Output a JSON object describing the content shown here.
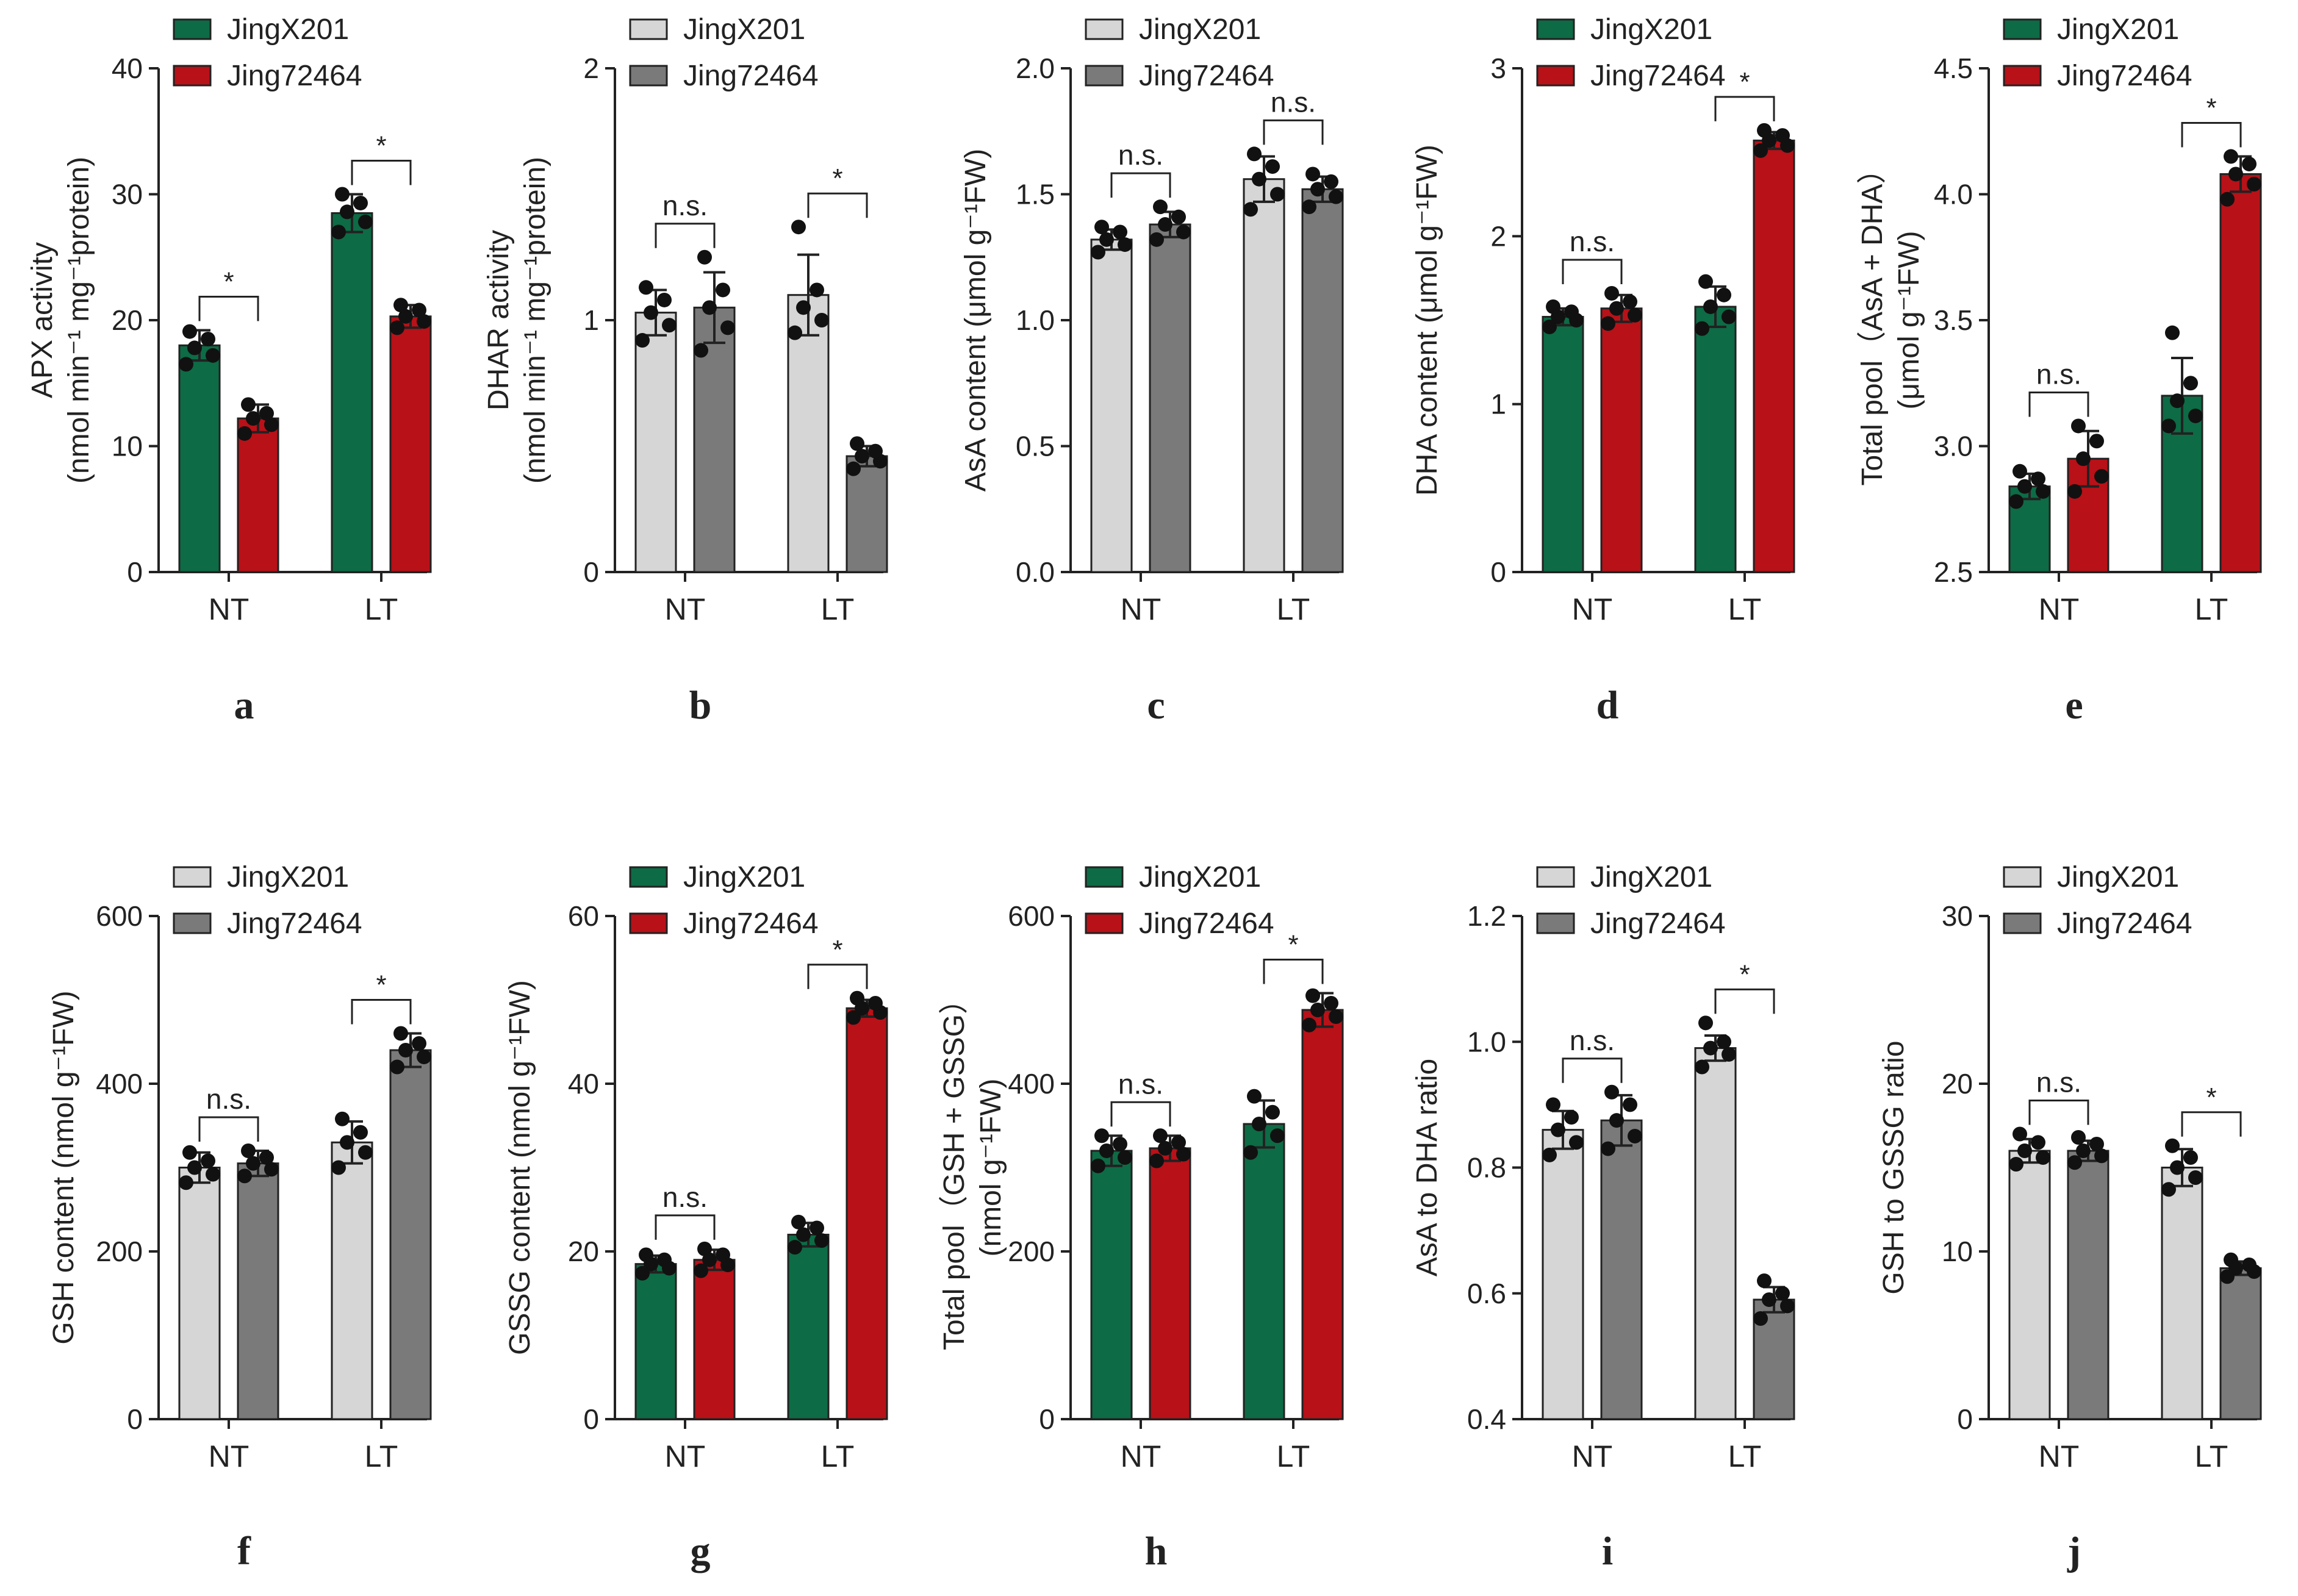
{
  "colors": {
    "green": "#0d6b45",
    "red": "#b81118",
    "light_gray": "#d6d6d6",
    "dark_gray": "#7a7a7a",
    "axis": "#222222"
  },
  "chart_data": [
    {
      "panel": "a",
      "type": "bar",
      "ylabel": "APX activity",
      "ylabel2": "(nmol min⁻¹ mg⁻¹protein)",
      "ylim": [
        0,
        40
      ],
      "yticks": [
        "0",
        "10",
        "20",
        "30",
        "40"
      ],
      "categories": [
        "NT",
        "LT"
      ],
      "series": [
        {
          "name": "JingX201",
          "color": "#0d6b45",
          "values": [
            18.0,
            28.5
          ],
          "errors": [
            1.2,
            1.5
          ],
          "points": [
            [
              16.5,
              17.2,
              17.8,
              18.5,
              19.1
            ],
            [
              27.0,
              27.8,
              28.6,
              29.3,
              30.0
            ]
          ]
        },
        {
          "name": "Jing72464",
          "color": "#b81118",
          "values": [
            12.2,
            20.3
          ],
          "errors": [
            1.1,
            0.9
          ],
          "points": [
            [
              11.0,
              11.7,
              12.2,
              12.6,
              13.3
            ],
            [
              19.4,
              19.9,
              20.3,
              20.8,
              21.2
            ]
          ]
        }
      ],
      "significance": [
        "*",
        "*"
      ]
    },
    {
      "panel": "b",
      "type": "bar",
      "ylabel": "DHAR activity",
      "ylabel2": "(nmol min⁻¹ mg⁻¹protein)",
      "ylim": [
        0,
        2
      ],
      "yticks": [
        "0",
        "1",
        "2"
      ],
      "categories": [
        "NT",
        "LT"
      ],
      "series": [
        {
          "name": "JingX201",
          "color": "#d6d6d6",
          "values": [
            1.03,
            1.1
          ],
          "errors": [
            0.09,
            0.16
          ],
          "points": [
            [
              0.92,
              0.98,
              1.03,
              1.08,
              1.13
            ],
            [
              0.95,
              1.0,
              1.05,
              1.12,
              1.37
            ]
          ]
        },
        {
          "name": "Jing72464",
          "color": "#7a7a7a",
          "values": [
            1.05,
            0.46
          ],
          "errors": [
            0.14,
            0.04
          ],
          "points": [
            [
              0.88,
              0.97,
              1.05,
              1.12,
              1.25
            ],
            [
              0.41,
              0.44,
              0.46,
              0.48,
              0.51
            ]
          ]
        }
      ],
      "significance": [
        "n.s.",
        "*"
      ]
    },
    {
      "panel": "c",
      "type": "bar",
      "ylabel": "AsA content (μmol g⁻¹FW)",
      "ylabel2": "",
      "ylim": [
        0,
        2.0
      ],
      "yticks": [
        "0.0",
        "0.5",
        "1.0",
        "1.5",
        "2.0"
      ],
      "categories": [
        "NT",
        "LT"
      ],
      "series": [
        {
          "name": "JingX201",
          "color": "#d6d6d6",
          "values": [
            1.32,
            1.56
          ],
          "errors": [
            0.04,
            0.09
          ],
          "points": [
            [
              1.27,
              1.3,
              1.32,
              1.35,
              1.37
            ],
            [
              1.44,
              1.5,
              1.56,
              1.61,
              1.66
            ]
          ]
        },
        {
          "name": "Jing72464",
          "color": "#7a7a7a",
          "values": [
            1.38,
            1.52
          ],
          "errors": [
            0.05,
            0.05
          ],
          "points": [
            [
              1.32,
              1.35,
              1.38,
              1.41,
              1.45
            ],
            [
              1.45,
              1.49,
              1.52,
              1.55,
              1.58
            ]
          ]
        }
      ],
      "significance": [
        "n.s.",
        "n.s."
      ]
    },
    {
      "panel": "d",
      "type": "bar",
      "ylabel": "DHA content (μmol g⁻¹FW)",
      "ylabel2": "",
      "ylim": [
        0,
        3
      ],
      "yticks": [
        "0",
        "1",
        "2",
        "3"
      ],
      "categories": [
        "NT",
        "LT"
      ],
      "series": [
        {
          "name": "JingX201",
          "color": "#0d6b45",
          "values": [
            1.52,
            1.58
          ],
          "errors": [
            0.05,
            0.12
          ],
          "points": [
            [
              1.46,
              1.5,
              1.52,
              1.55,
              1.58
            ],
            [
              1.45,
              1.52,
              1.58,
              1.65,
              1.73
            ]
          ]
        },
        {
          "name": "Jing72464",
          "color": "#b81118",
          "values": [
            1.57,
            2.57
          ],
          "errors": [
            0.08,
            0.05
          ],
          "points": [
            [
              1.48,
              1.53,
              1.57,
              1.61,
              1.66
            ],
            [
              2.51,
              2.54,
              2.57,
              2.6,
              2.63
            ]
          ]
        }
      ],
      "significance": [
        "n.s.",
        "*"
      ]
    },
    {
      "panel": "e",
      "type": "bar",
      "ylabel": "Total pool（AsA + DHA）",
      "ylabel2": "(μmol g⁻¹FW)",
      "ylim": [
        2.5,
        4.5
      ],
      "yticks": [
        "2.5",
        "3.0",
        "3.5",
        "4.0",
        "4.5"
      ],
      "categories": [
        "NT",
        "LT"
      ],
      "series": [
        {
          "name": "JingX201",
          "color": "#0d6b45",
          "values": [
            2.84,
            3.2
          ],
          "errors": [
            0.05,
            0.15
          ],
          "points": [
            [
              2.78,
              2.82,
              2.84,
              2.87,
              2.9
            ],
            [
              3.08,
              3.12,
              3.18,
              3.25,
              3.45
            ]
          ]
        },
        {
          "name": "Jing72464",
          "color": "#b81118",
          "values": [
            2.95,
            4.08
          ],
          "errors": [
            0.11,
            0.07
          ],
          "points": [
            [
              2.82,
              2.88,
              2.95,
              3.02,
              3.08
            ],
            [
              3.98,
              4.04,
              4.08,
              4.12,
              4.15
            ]
          ]
        }
      ],
      "significance": [
        "n.s.",
        "*"
      ]
    },
    {
      "panel": "f",
      "type": "bar",
      "ylabel": "GSH content (nmol g⁻¹FW)",
      "ylabel2": "",
      "ylim": [
        0,
        600
      ],
      "yticks": [
        "0",
        "200",
        "400",
        "600"
      ],
      "categories": [
        "NT",
        "LT"
      ],
      "series": [
        {
          "name": "JingX201",
          "color": "#d6d6d6",
          "values": [
            300,
            330
          ],
          "errors": [
            18,
            25
          ],
          "points": [
            [
              282,
              292,
              300,
              308,
              318
            ],
            [
              300,
              318,
              330,
              342,
              358
            ]
          ]
        },
        {
          "name": "Jing72464",
          "color": "#7a7a7a",
          "values": [
            305,
            440
          ],
          "errors": [
            15,
            20
          ],
          "points": [
            [
              290,
              298,
              305,
              312,
              320
            ],
            [
              420,
              432,
              440,
              448,
              460
            ]
          ]
        }
      ],
      "significance": [
        "n.s.",
        "*"
      ]
    },
    {
      "panel": "g",
      "type": "bar",
      "ylabel": "GSSG content (nmol g⁻¹FW)",
      "ylabel2": "",
      "ylim": [
        0,
        60
      ],
      "yticks": [
        "0",
        "20",
        "40",
        "60"
      ],
      "categories": [
        "NT",
        "LT"
      ],
      "series": [
        {
          "name": "JingX201",
          "color": "#0d6b45",
          "values": [
            18.5,
            22.0
          ],
          "errors": [
            1.0,
            1.4
          ],
          "points": [
            [
              17.4,
              18.0,
              18.5,
              19.0,
              19.6
            ],
            [
              20.5,
              21.3,
              22.0,
              22.8,
              23.5
            ]
          ]
        },
        {
          "name": "Jing72464",
          "color": "#b81118",
          "values": [
            19.0,
            49.0
          ],
          "errors": [
            1.2,
            1.0
          ],
          "points": [
            [
              17.7,
              18.4,
              19.0,
              19.6,
              20.3
            ],
            [
              47.9,
              48.5,
              49.0,
              49.6,
              50.2
            ]
          ]
        }
      ],
      "significance": [
        "n.s.",
        "*"
      ]
    },
    {
      "panel": "h",
      "type": "bar",
      "ylabel": "Total pool（GSH + GSSG）",
      "ylabel2": "(nmol g⁻¹FW)",
      "ylim": [
        0,
        600
      ],
      "yticks": [
        "0",
        "200",
        "400",
        "600"
      ],
      "categories": [
        "NT",
        "LT"
      ],
      "series": [
        {
          "name": "JingX201",
          "color": "#0d6b45",
          "values": [
            320,
            352
          ],
          "errors": [
            18,
            28
          ],
          "points": [
            [
              302,
              312,
              320,
              328,
              338
            ],
            [
              318,
              338,
              352,
              366,
              385
            ]
          ]
        },
        {
          "name": "Jing72464",
          "color": "#b81118",
          "values": [
            323,
            488
          ],
          "errors": [
            15,
            20
          ],
          "points": [
            [
              308,
              316,
              323,
              330,
              338
            ],
            [
              470,
              480,
              488,
              496,
              505
            ]
          ]
        }
      ],
      "significance": [
        "n.s.",
        "*"
      ]
    },
    {
      "panel": "i",
      "type": "bar",
      "ylabel": "AsA to DHA ratio",
      "ylabel2": "",
      "ylim": [
        0.4,
        1.2
      ],
      "yticks": [
        "0.4",
        "0.6",
        "0.8",
        "1.0",
        "1.2"
      ],
      "categories": [
        "NT",
        "LT"
      ],
      "series": [
        {
          "name": "JingX201",
          "color": "#d6d6d6",
          "values": [
            0.86,
            0.99
          ],
          "errors": [
            0.03,
            0.02
          ],
          "points": [
            [
              0.82,
              0.84,
              0.86,
              0.88,
              0.9
            ],
            [
              0.96,
              0.98,
              0.99,
              1.0,
              1.03
            ]
          ]
        },
        {
          "name": "Jing72464",
          "color": "#7a7a7a",
          "values": [
            0.875,
            0.59
          ],
          "errors": [
            0.04,
            0.02
          ],
          "points": [
            [
              0.83,
              0.85,
              0.875,
              0.9,
              0.92
            ],
            [
              0.56,
              0.58,
              0.59,
              0.6,
              0.62
            ]
          ]
        }
      ],
      "significance": [
        "n.s.",
        "*"
      ]
    },
    {
      "panel": "j",
      "type": "bar",
      "ylabel": "GSH to GSSG ratio",
      "ylabel2": "",
      "ylim": [
        0,
        30
      ],
      "yticks": [
        "0",
        "10",
        "20",
        "30"
      ],
      "categories": [
        "NT",
        "LT"
      ],
      "series": [
        {
          "name": "JingX201",
          "color": "#d6d6d6",
          "values": [
            16.0,
            15.0
          ],
          "errors": [
            0.7,
            1.1
          ],
          "points": [
            [
              15.2,
              15.6,
              16.0,
              16.5,
              17.0
            ],
            [
              13.7,
              14.4,
              15.0,
              15.6,
              16.3
            ]
          ]
        },
        {
          "name": "Jing72464",
          "color": "#7a7a7a",
          "values": [
            16.0,
            9.0
          ],
          "errors": [
            0.6,
            0.4
          ],
          "points": [
            [
              15.3,
              15.7,
              16.0,
              16.4,
              16.8
            ],
            [
              8.5,
              8.8,
              9.0,
              9.2,
              9.5
            ]
          ]
        }
      ],
      "significance": [
        "n.s.",
        "*"
      ]
    }
  ]
}
